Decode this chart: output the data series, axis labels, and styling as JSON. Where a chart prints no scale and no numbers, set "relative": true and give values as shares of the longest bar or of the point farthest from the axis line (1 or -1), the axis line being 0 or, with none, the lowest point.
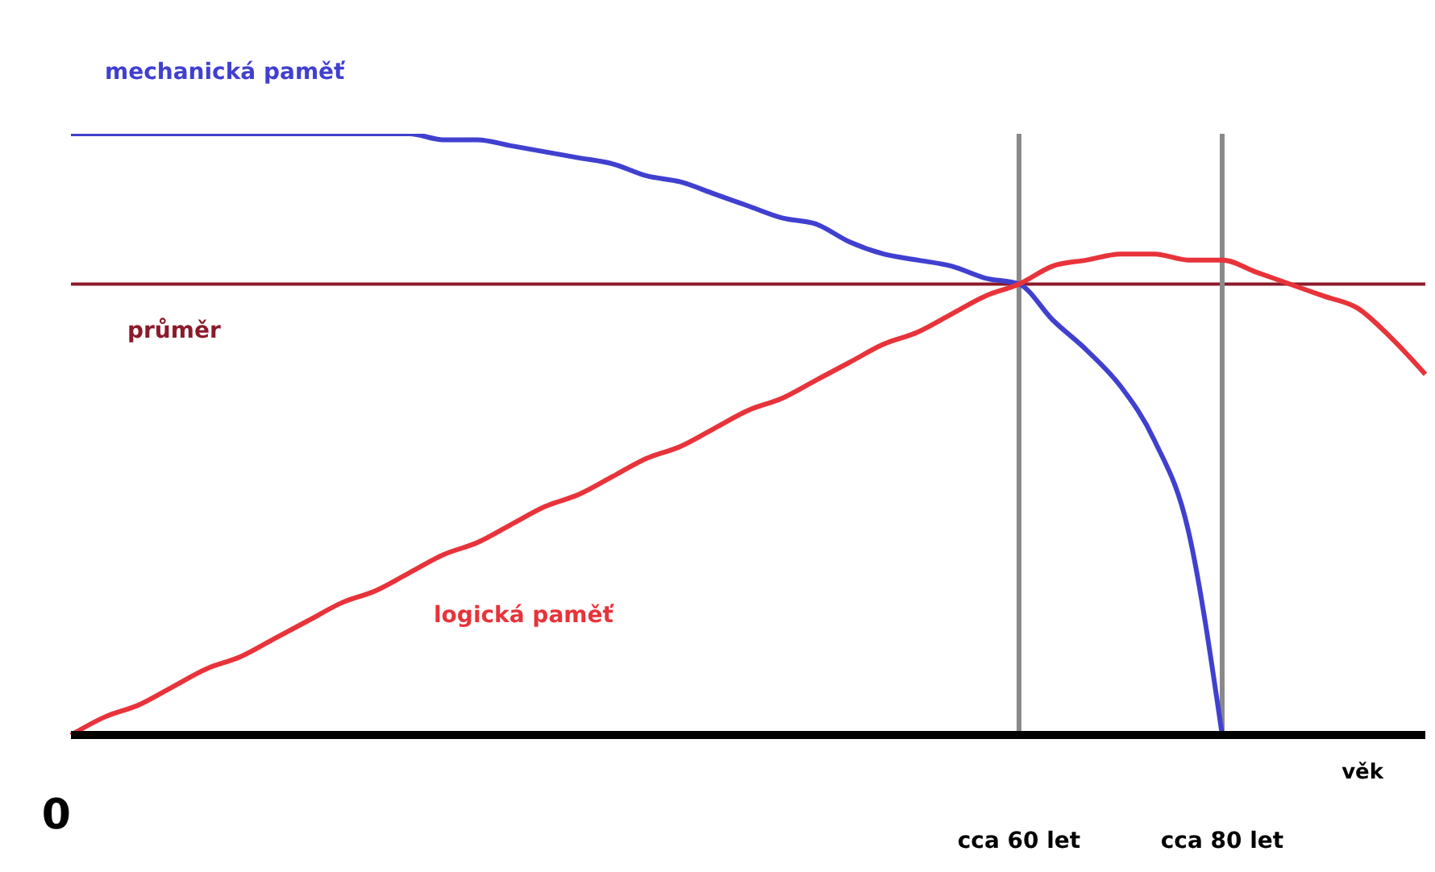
{
  "chart_data": {
    "type": "line",
    "relative": true,
    "xlabel": "věk",
    "categories": [
      "0",
      null,
      null,
      null,
      null,
      null,
      null,
      null,
      null,
      null,
      null,
      null,
      null,
      null,
      null,
      null,
      null,
      null,
      null,
      null,
      null,
      null,
      null,
      null,
      null,
      null,
      null,
      null,
      "cca 60 let",
      null,
      null,
      null,
      null,
      null,
      "cca 80 let",
      null,
      null,
      null,
      null,
      null,
      null
    ],
    "series": [
      {
        "name": "mechanická paměť",
        "color": "#4040d0",
        "values": [
          1,
          1,
          1,
          1,
          1,
          1,
          1,
          1,
          1,
          1,
          1,
          0.99,
          0.99,
          0.98,
          0.97,
          0.96,
          0.95,
          0.93,
          0.92,
          0.9,
          0.88,
          0.86,
          0.85,
          0.82,
          0.8,
          0.79,
          0.78,
          0.76,
          0.75,
          0.69,
          0.64,
          0.58,
          0.49,
          0.34,
          0,
          null,
          null,
          null,
          null,
          null,
          null
        ]
      },
      {
        "name": "logická paměť",
        "color": "#e8333a",
        "values": [
          0,
          0.03,
          0.05,
          0.08,
          0.11,
          0.13,
          0.16,
          0.19,
          0.22,
          0.24,
          0.27,
          0.3,
          0.32,
          0.35,
          0.38,
          0.4,
          0.43,
          0.46,
          0.48,
          0.51,
          0.54,
          0.56,
          0.59,
          0.62,
          0.65,
          0.67,
          0.7,
          0.73,
          0.75,
          0.78,
          0.79,
          0.8,
          0.8,
          0.79,
          0.79,
          0.77,
          0.75,
          0.73,
          0.71,
          0.66,
          0.6
        ]
      }
    ],
    "ref_lines": [
      {
        "axis": "y",
        "value": 0.75,
        "label": "průměr",
        "color": "#8b1a2a"
      },
      {
        "axis": "x",
        "value": "cca 60 let",
        "label": null,
        "color": "#8a8a8a"
      },
      {
        "axis": "x",
        "value": "cca 80 let",
        "label": null,
        "color": "#8a8a8a"
      }
    ]
  }
}
